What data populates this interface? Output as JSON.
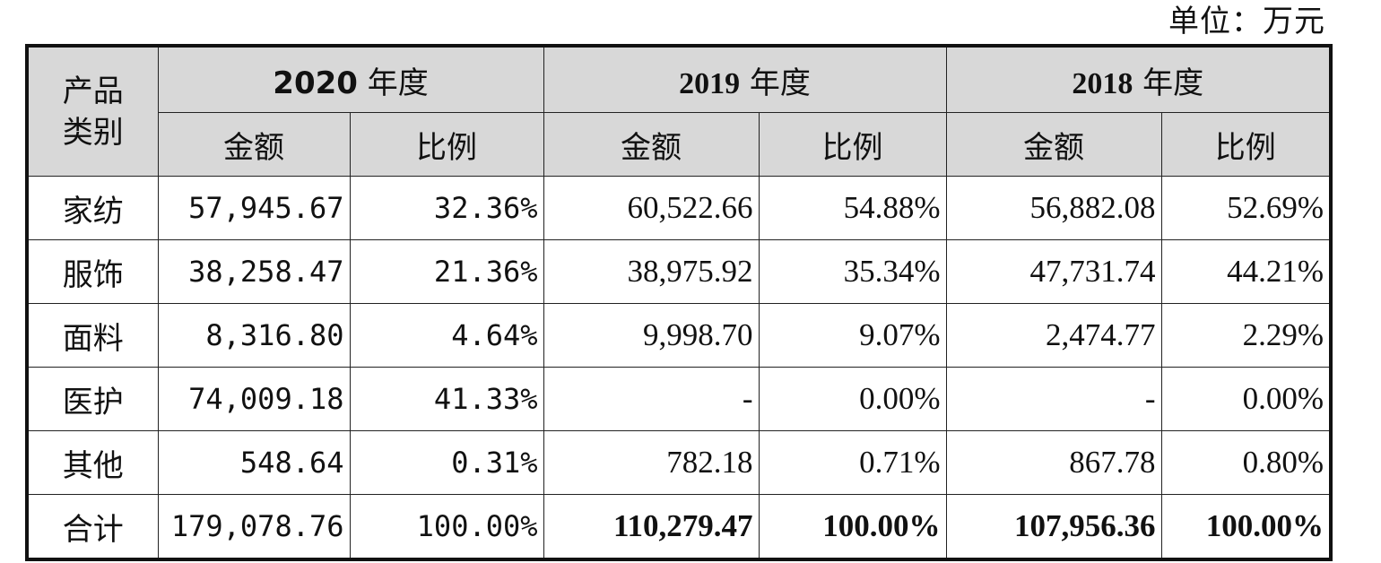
{
  "unit_label": "单位：万元",
  "header": {
    "category": "产品\n类别",
    "category_line1": "产品",
    "category_line2": "类别",
    "years": [
      {
        "year": "2020",
        "suffix": " 年度"
      },
      {
        "year": "2019",
        "suffix": " 年度"
      },
      {
        "year": "2018",
        "suffix": " 年度"
      }
    ],
    "amount_label": "金额",
    "ratio_label": "比例"
  },
  "rows": [
    {
      "category": "家纺",
      "y2020_amount": "57,945.67",
      "y2020_ratio": "32.36%",
      "y2019_amount": "60,522.66",
      "y2019_ratio": "54.88%",
      "y2018_amount": "56,882.08",
      "y2018_ratio": "52.69%"
    },
    {
      "category": "服饰",
      "y2020_amount": "38,258.47",
      "y2020_ratio": "21.36%",
      "y2019_amount": "38,975.92",
      "y2019_ratio": "35.34%",
      "y2018_amount": "47,731.74",
      "y2018_ratio": "44.21%"
    },
    {
      "category": "面料",
      "y2020_amount": "8,316.80",
      "y2020_ratio": "4.64%",
      "y2019_amount": "9,998.70",
      "y2019_ratio": "9.07%",
      "y2018_amount": "2,474.77",
      "y2018_ratio": "2.29%"
    },
    {
      "category": "医护",
      "y2020_amount": "74,009.18",
      "y2020_ratio": "41.33%",
      "y2019_amount": "-",
      "y2019_ratio": "0.00%",
      "y2018_amount": "-",
      "y2018_ratio": "0.00%"
    },
    {
      "category": "其他",
      "y2020_amount": "548.64",
      "y2020_ratio": "0.31%",
      "y2019_amount": "782.18",
      "y2019_ratio": "0.71%",
      "y2018_amount": "867.78",
      "y2018_ratio": "0.80%"
    }
  ],
  "total": {
    "category": "合计",
    "y2020_amount": "179,078.76",
    "y2020_ratio": "100.00%",
    "y2019_amount": "110,279.47",
    "y2019_ratio": "100.00%",
    "y2018_amount": "107,956.36",
    "y2018_ratio": "100.00%"
  }
}
